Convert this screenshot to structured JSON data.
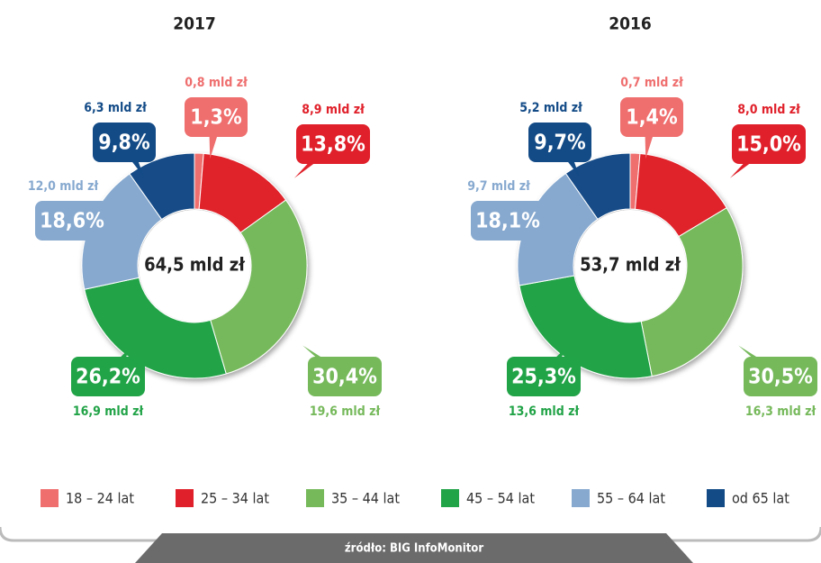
{
  "chart_data": [
    {
      "type": "donut",
      "title": "2017",
      "total_label": "64,5 mld zł",
      "values": [
        1.3,
        13.8,
        30.4,
        26.2,
        18.6,
        9.8
      ],
      "value_labels": [
        "1,3%",
        "13,8%",
        "30,4%",
        "26,2%",
        "18,6%",
        "9,8%"
      ],
      "amounts": [
        0.8,
        8.9,
        19.6,
        16.9,
        12.0,
        6.3
      ],
      "amount_labels": [
        "0,8 mld zł",
        "8,9 mld zł",
        "19,6 mld zł",
        "16,9 mld zł",
        "12,0 mld zł",
        "6,3 mld zł"
      ]
    },
    {
      "type": "donut",
      "title": "2016",
      "total_label": "53,7 mld zł",
      "values": [
        1.4,
        15.0,
        30.5,
        25.3,
        18.1,
        9.7
      ],
      "value_labels": [
        "1,4%",
        "15,0%",
        "30,5%",
        "25,3%",
        "18,1%",
        "9,7%"
      ],
      "amounts": [
        0.7,
        8.0,
        16.3,
        13.6,
        9.7,
        5.2
      ],
      "amount_labels": [
        "0,7 mld zł",
        "8,0 mld zł",
        "16,3 mld zł",
        "13,6 mld zł",
        "9,7 mld zł",
        "5,2 mld zł"
      ]
    }
  ],
  "legend": {
    "categories": [
      "18 – 24 lat",
      "25 – 34 lat",
      "35 – 44 lat",
      "45 – 54 lat",
      "55 – 64 lat",
      "od 65 lat"
    ],
    "colors": [
      "#ef6e6e",
      "#e0202a",
      "#76b95b",
      "#21a347",
      "#87a9cf",
      "#134b87"
    ]
  },
  "source": "źródło: BIG InfoMonitor"
}
